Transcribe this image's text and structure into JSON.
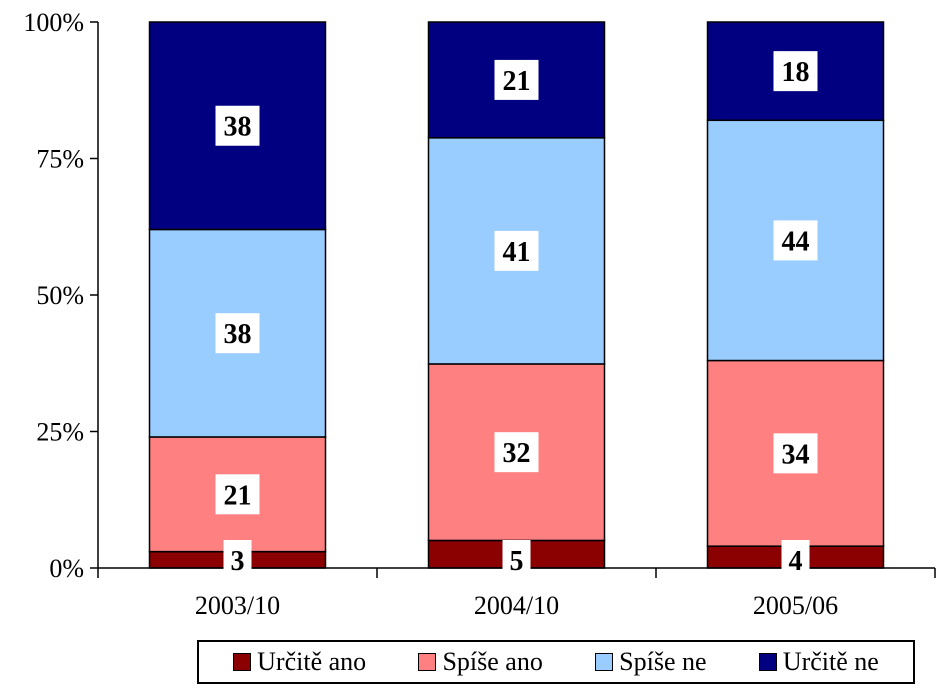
{
  "chart_data": {
    "type": "bar",
    "stacked": true,
    "percent_stacked": true,
    "categories": [
      "2003/10",
      "2004/10",
      "2005/06"
    ],
    "series": [
      {
        "name": "Určitě ano",
        "color": "#8B0000",
        "values": [
          3,
          5,
          4
        ]
      },
      {
        "name": "Spíše ano",
        "color": "#FF8080",
        "values": [
          21,
          32,
          34
        ]
      },
      {
        "name": "Spíše ne",
        "color": "#99CCFF",
        "values": [
          38,
          41,
          44
        ]
      },
      {
        "name": "Určitě ne",
        "color": "#000080",
        "values": [
          38,
          21,
          18
        ]
      }
    ],
    "y_ticks": [
      "0%",
      "25%",
      "50%",
      "75%",
      "100%"
    ],
    "ylim": [
      0,
      100
    ],
    "grid": false,
    "legend_position": "bottom"
  }
}
